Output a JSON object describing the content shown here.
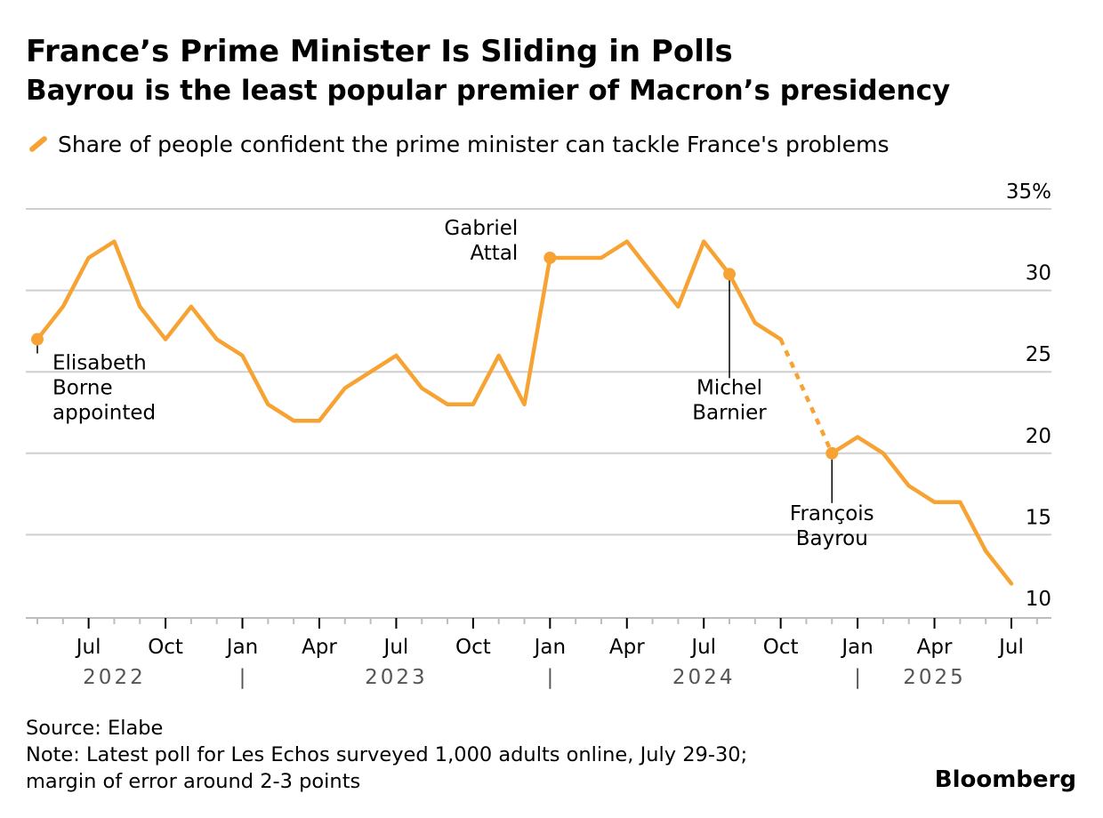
{
  "header": {
    "title": "France’s Prime Minister Is Sliding in Polls",
    "subtitle": "Bayrou is the least popular premier of Macron’s presidency"
  },
  "legend": {
    "label": "Share of people confident the prime minister can tackle France's problems"
  },
  "footer": {
    "source": "Source: Elabe",
    "note_line1": "Note: Latest poll for Les Echos surveyed 1,000 adults online, July 29-30;",
    "note_line2": "margin of error around 2-3 points",
    "brand": "Bloomberg"
  },
  "chart_data": {
    "type": "line",
    "title": "France’s Prime Minister Is Sliding in Polls",
    "subtitle": "Bayrou is the least popular premier of Macron’s presidency",
    "series": [
      {
        "name": "Share of people confident the prime minister can tackle France's problems",
        "color": "#F7A334",
        "points": [
          {
            "x": "2022-05",
            "y": 27
          },
          {
            "x": "2022-06",
            "y": 29
          },
          {
            "x": "2022-07",
            "y": 32
          },
          {
            "x": "2022-08",
            "y": 33
          },
          {
            "x": "2022-09",
            "y": 29
          },
          {
            "x": "2022-10",
            "y": 27
          },
          {
            "x": "2022-11",
            "y": 29
          },
          {
            "x": "2022-12",
            "y": 27
          },
          {
            "x": "2023-01",
            "y": 26
          },
          {
            "x": "2023-02",
            "y": 23
          },
          {
            "x": "2023-03",
            "y": 22
          },
          {
            "x": "2023-04",
            "y": 22
          },
          {
            "x": "2023-05",
            "y": 24
          },
          {
            "x": "2023-06",
            "y": 25
          },
          {
            "x": "2023-07",
            "y": 26
          },
          {
            "x": "2023-08",
            "y": 24
          },
          {
            "x": "2023-09",
            "y": 23
          },
          {
            "x": "2023-10",
            "y": 23
          },
          {
            "x": "2023-11",
            "y": 26
          },
          {
            "x": "2023-12",
            "y": 23
          },
          {
            "x": "2024-01",
            "y": 32
          },
          {
            "x": "2024-02",
            "y": 32
          },
          {
            "x": "2024-03",
            "y": 32
          },
          {
            "x": "2024-04",
            "y": 33
          },
          {
            "x": "2024-05",
            "y": 31
          },
          {
            "x": "2024-06",
            "y": 29
          },
          {
            "x": "2024-07",
            "y": 33
          },
          {
            "x": "2024-08",
            "y": 31
          },
          {
            "x": "2024-09",
            "y": 28
          },
          {
            "x": "2024-10",
            "y": 27
          },
          {
            "x": "2024-12",
            "y": 20
          },
          {
            "x": "2025-01",
            "y": 21
          },
          {
            "x": "2025-02",
            "y": 20
          },
          {
            "x": "2025-03",
            "y": 18
          },
          {
            "x": "2025-04",
            "y": 17
          },
          {
            "x": "2025-05",
            "y": 17
          },
          {
            "x": "2025-06",
            "y": 14
          },
          {
            "x": "2025-07",
            "y": 12
          }
        ],
        "dashed_gap": {
          "from": "2024-10",
          "to": "2024-12"
        }
      }
    ],
    "annotations": [
      {
        "x": "2022-05",
        "y": 27,
        "lines": [
          "Elisabeth",
          "Borne",
          "appointed"
        ]
      },
      {
        "x": "2024-01",
        "y": 32,
        "lines": [
          "Gabriel",
          "Attal"
        ]
      },
      {
        "x": "2024-08",
        "y": 31,
        "lines": [
          "Michel",
          "Barnier"
        ]
      },
      {
        "x": "2024-12",
        "y": 20,
        "lines": [
          "François",
          "Bayrou"
        ]
      }
    ],
    "y_axis": {
      "ylim": [
        10,
        35
      ],
      "ticks": [
        {
          "value": 35,
          "label": "35%"
        },
        {
          "value": 30,
          "label": "30"
        },
        {
          "value": 25,
          "label": "25"
        },
        {
          "value": 20,
          "label": "20"
        },
        {
          "value": 15,
          "label": "15"
        },
        {
          "value": 10,
          "label": "10"
        }
      ],
      "position": "right",
      "grid": true
    },
    "x_axis": {
      "range": [
        "2022-05",
        "2025-08"
      ],
      "month_labels": [
        {
          "x": "2022-07",
          "label": "Jul"
        },
        {
          "x": "2022-10",
          "label": "Oct"
        },
        {
          "x": "2023-01",
          "label": "Jan"
        },
        {
          "x": "2023-04",
          "label": "Apr"
        },
        {
          "x": "2023-07",
          "label": "Jul"
        },
        {
          "x": "2023-10",
          "label": "Oct"
        },
        {
          "x": "2024-01",
          "label": "Jan"
        },
        {
          "x": "2024-04",
          "label": "Apr"
        },
        {
          "x": "2024-07",
          "label": "Jul"
        },
        {
          "x": "2024-10",
          "label": "Oct"
        },
        {
          "x": "2025-01",
          "label": "Jan"
        },
        {
          "x": "2025-04",
          "label": "Apr"
        },
        {
          "x": "2025-07",
          "label": "Jul"
        }
      ],
      "year_labels": [
        {
          "label": "2022",
          "center": "2022-08"
        },
        {
          "label": "2023",
          "center": "2023-07"
        },
        {
          "label": "2024",
          "center": "2024-07"
        },
        {
          "label": "2025",
          "center": "2025-04"
        }
      ],
      "year_dividers": [
        "2023-01",
        "2024-01",
        "2025-01"
      ],
      "year_divider_label": "|"
    },
    "legend": "top-left"
  }
}
